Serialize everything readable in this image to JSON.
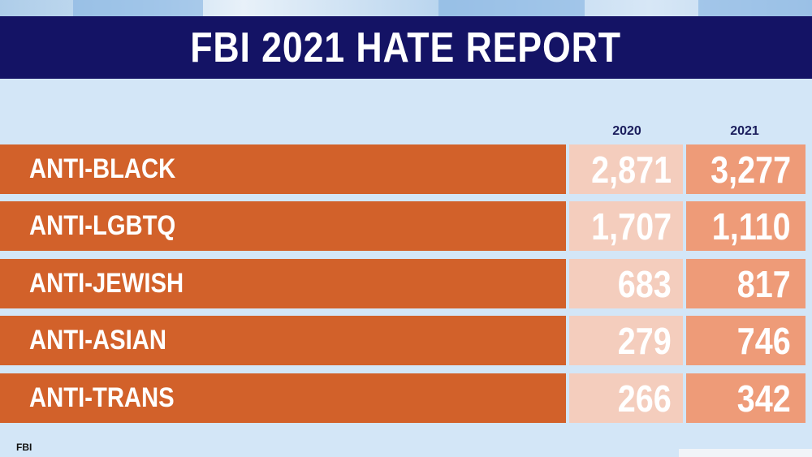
{
  "title": "FBI 2021 HATE REPORT",
  "source": "FBI",
  "colors": {
    "title_bar": "#141365",
    "background": "#d3e6f7",
    "label_cell": "#d2612a",
    "cell_2020": "#f4cdbd",
    "cell_2021": "#ee9b78",
    "year_text": "#1a1d5c"
  },
  "chart_data": {
    "type": "table",
    "title": "FBI 2021 HATE REPORT",
    "columns": [
      "2020",
      "2021"
    ],
    "rows": [
      {
        "label": "ANTI-BLACK",
        "values": [
          "2,871",
          "3,277"
        ]
      },
      {
        "label": "ANTI-LGBTQ",
        "values": [
          "1,707",
          "1,110"
        ]
      },
      {
        "label": "ANTI-JEWISH",
        "values": [
          "683",
          "817"
        ]
      },
      {
        "label": "ANTI-ASIAN",
        "values": [
          "279",
          "746"
        ]
      },
      {
        "label": "ANTI-TRANS",
        "values": [
          "266",
          "342"
        ]
      }
    ],
    "source": "FBI"
  }
}
